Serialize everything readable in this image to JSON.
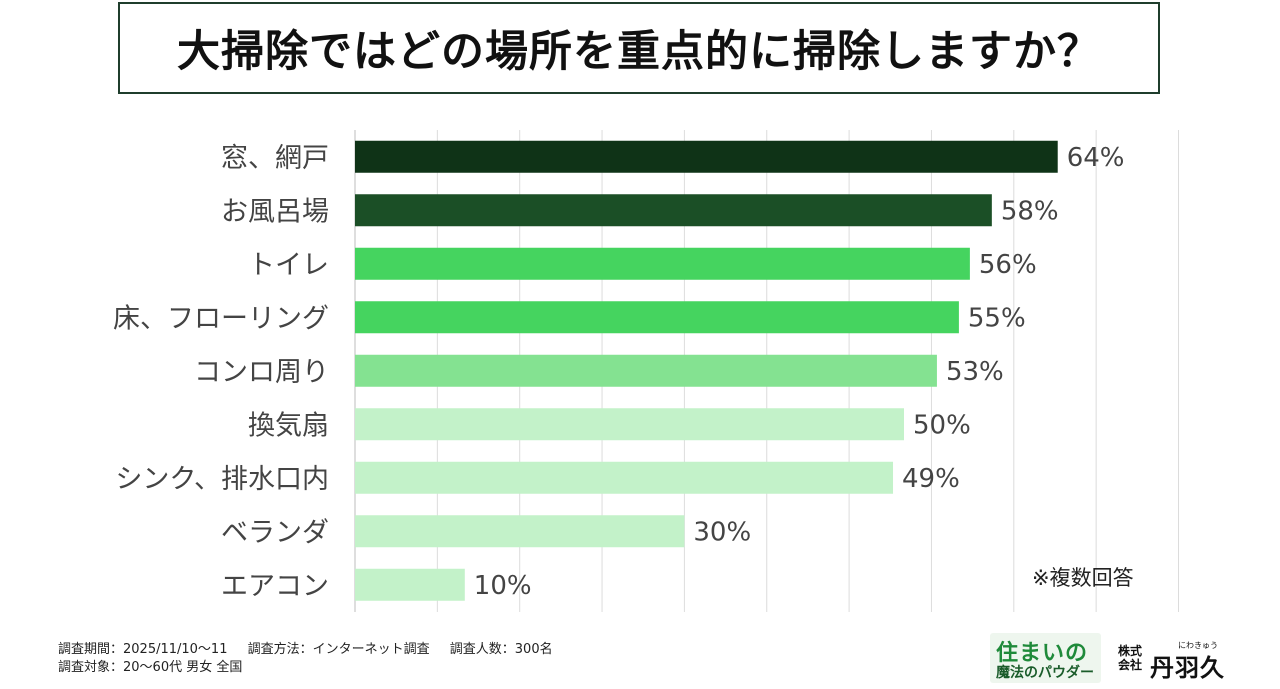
{
  "title": "大掃除ではどの場所を重点的に掃除しますか？",
  "chart_data": {
    "type": "bar",
    "orientation": "horizontal",
    "title": "大掃除ではどの場所を重点的に掃除しますか？",
    "categories": [
      "窓、網戸",
      "お風呂場",
      "トイレ",
      "床、フローリング",
      "コンロ周り",
      "換気扇",
      "シンク、排水口内",
      "ベランダ",
      "エアコン"
    ],
    "values": [
      64,
      58,
      56,
      55,
      53,
      50,
      49,
      30,
      10
    ],
    "value_labels": [
      "64%",
      "58%",
      "56%",
      "55%",
      "53%",
      "50%",
      "49%",
      "30%",
      "10%"
    ],
    "colors": [
      "#0f3317",
      "#1b4f26",
      "#45d45f",
      "#45d45f",
      "#84e291",
      "#c3f2c9",
      "#c3f2c9",
      "#c3f2c9",
      "#c3f2c9"
    ],
    "xlim": [
      0,
      100
    ],
    "xlabel": "",
    "ylabel": "",
    "grid": true,
    "note": "※複数回答"
  },
  "footer": {
    "period": "調査期間：2025/11/10〜11",
    "method": "調査方法：インターネット調査",
    "respondents": "調査人数：300名",
    "target": "調査対象：20〜60代 男女 全国"
  },
  "logo_powder": {
    "line1": "住まいの",
    "line2": "魔法のパウダー"
  },
  "logo_company": {
    "corp": "株式会社",
    "ruby": "にわきゅう",
    "name": "丹羽久"
  }
}
